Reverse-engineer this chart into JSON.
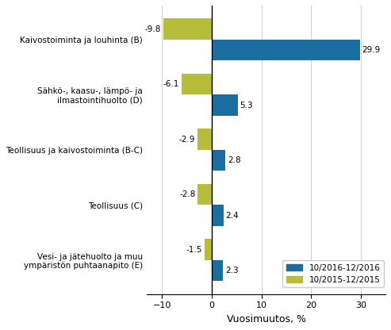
{
  "categories": [
    "Kaivostoiminta ja louhinta (B)",
    "Sähkö-, kaasu-, lämpö- ja\nilmastointihuolto (D)",
    "Teollisuus ja kaivostoiminta (B-C)",
    "Teollisuus (C)",
    "Vesi- ja jätehuolto ja muu\nympäristön puhtaanapito (E)"
  ],
  "values_2016": [
    29.9,
    5.3,
    2.8,
    2.4,
    2.3
  ],
  "values_2015": [
    -9.8,
    -6.1,
    -2.9,
    -2.8,
    -1.5
  ],
  "color_2016": "#1a6e9f",
  "color_2015": "#b5bd3a",
  "xlabel": "Vuosimuutos, %",
  "legend_2016": "10/2016-12/2016",
  "legend_2015": "10/2015-12/2015",
  "xlim": [
    -13,
    35
  ],
  "xticks": [
    -10,
    0,
    10,
    20,
    30
  ]
}
